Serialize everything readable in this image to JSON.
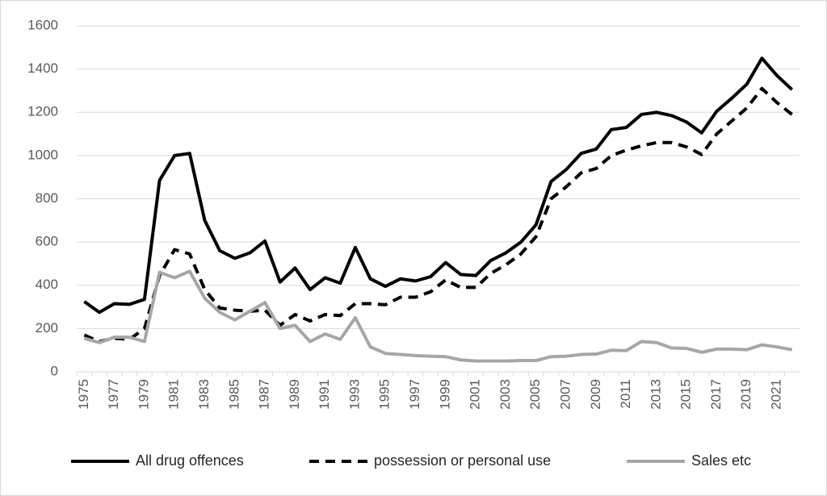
{
  "chart_data": {
    "type": "line",
    "categories": [
      "1975",
      null,
      "1977",
      null,
      "1979",
      null,
      "1981",
      null,
      "1983",
      null,
      "1985",
      null,
      "1987",
      null,
      "1989",
      null,
      "1991",
      null,
      "1993",
      null,
      "1995",
      null,
      "1997",
      null,
      "1999",
      null,
      "2001",
      null,
      "2003",
      null,
      "2005",
      null,
      "2007",
      null,
      "2009",
      null,
      "2011",
      null,
      "2013",
      null,
      "2015",
      null,
      "2017",
      null,
      "2019",
      null,
      "2021",
      null
    ],
    "series": [
      {
        "name": "All drug offences",
        "color": "#000000",
        "dash": "solid",
        "values": [
          325,
          275,
          315,
          312,
          335,
          885,
          1000,
          1010,
          700,
          560,
          525,
          550,
          605,
          415,
          480,
          380,
          435,
          410,
          575,
          430,
          395,
          430,
          420,
          440,
          505,
          450,
          445,
          515,
          550,
          600,
          680,
          880,
          935,
          1010,
          1030,
          1120,
          1130,
          1190,
          1200,
          1185,
          1155,
          1105,
          1205,
          1265,
          1330,
          1450,
          1370,
          1305
        ]
      },
      {
        "name": "possession or personal use",
        "color": "#000000",
        "dash": "dashed",
        "values": [
          170,
          140,
          155,
          150,
          200,
          445,
          565,
          545,
          380,
          295,
          285,
          280,
          285,
          215,
          265,
          235,
          265,
          260,
          315,
          315,
          310,
          345,
          345,
          370,
          425,
          390,
          390,
          455,
          495,
          545,
          625,
          800,
          855,
          920,
          940,
          1000,
          1025,
          1045,
          1060,
          1060,
          1040,
          1005,
          1100,
          1160,
          1220,
          1310,
          1245,
          1190
        ]
      },
      {
        "name": "Sales etc",
        "color": "#a6a6a6",
        "dash": "solid",
        "values": [
          155,
          135,
          160,
          160,
          140,
          460,
          435,
          465,
          340,
          275,
          240,
          280,
          320,
          200,
          215,
          140,
          175,
          150,
          250,
          115,
          85,
          80,
          75,
          72,
          70,
          55,
          50,
          50,
          50,
          52,
          52,
          70,
          72,
          80,
          82,
          100,
          98,
          140,
          135,
          110,
          108,
          90,
          105,
          105,
          102,
          125,
          115,
          102
        ]
      }
    ],
    "ylim": [
      0,
      1600
    ],
    "yticks": [
      0,
      200,
      400,
      600,
      800,
      1000,
      1200,
      1400,
      1600
    ],
    "grid": true,
    "legend": "bottom"
  }
}
